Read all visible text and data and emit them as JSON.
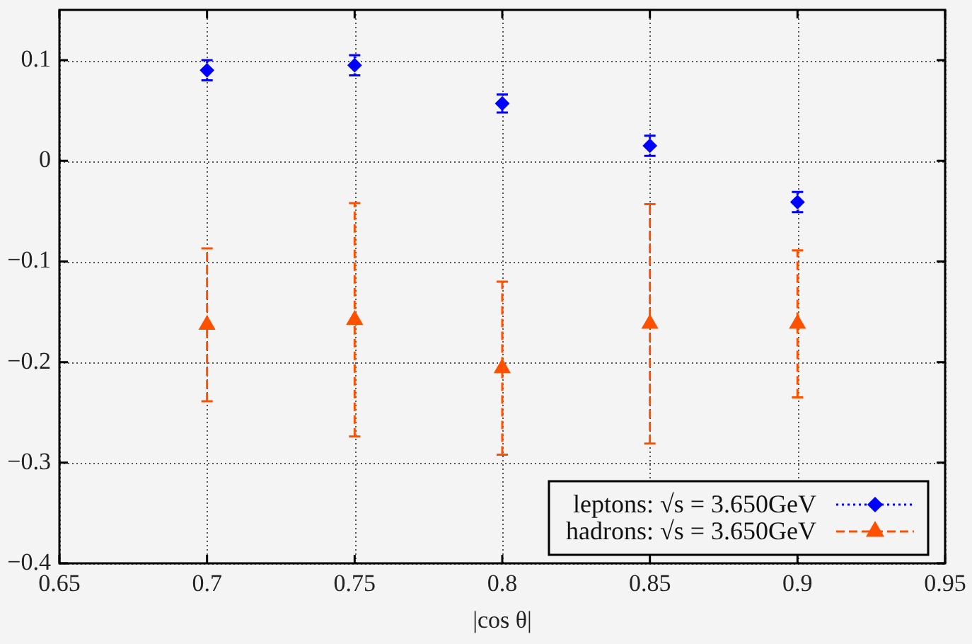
{
  "chart_data": {
    "type": "scatter",
    "xlabel": "|cos θ|",
    "x": [
      0.7,
      0.75,
      0.8,
      0.85,
      0.9
    ],
    "series": [
      {
        "name": "leptons: √s = 3.650GeV",
        "color": "#0000ff",
        "values": [
          0.09,
          0.095,
          0.057,
          0.015,
          -0.041
        ],
        "errors": [
          0.01,
          0.01,
          0.009,
          0.01,
          0.01
        ],
        "marker": "diamond",
        "line_style": "dotted"
      },
      {
        "name": "hadrons: √s = 3.650GeV",
        "color": "#ff5000",
        "values": [
          -0.163,
          -0.158,
          -0.206,
          -0.162,
          -0.162
        ],
        "errors": [
          0.076,
          0.116,
          0.086,
          0.119,
          0.073
        ],
        "marker": "triangle",
        "line_style": "dashed"
      }
    ],
    "xlim": [
      0.65,
      0.95
    ],
    "xticks": [
      0.65,
      0.7,
      0.75,
      0.8,
      0.85,
      0.9,
      0.95
    ],
    "ylim": [
      -0.4,
      0.15
    ],
    "yticks": [
      -0.4,
      -0.3,
      -0.2,
      -0.1,
      0,
      0.1
    ],
    "grid": true,
    "legend": "bottom right"
  }
}
